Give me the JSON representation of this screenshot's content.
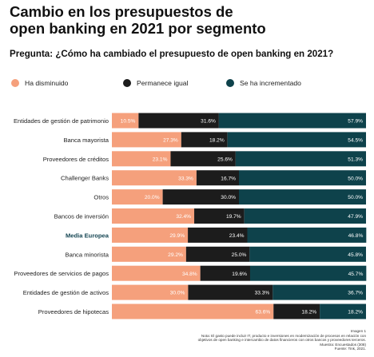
{
  "title_line1": "Cambio en los presupuestos de",
  "title_line2": "open banking en 2021 por segmento",
  "question": "Pregunta: ¿Cómo ha cambiado el presupuesto de open banking en 2021?",
  "colors": {
    "decreased": "#f5a07c",
    "same": "#1c1c1c",
    "increased": "#0e424b",
    "highlight_label": "#154653"
  },
  "chart_data": {
    "type": "bar",
    "orientation": "horizontal",
    "stacked": true,
    "normalized_percent": true,
    "categories": [
      "Entidades de gestión de patrimonio",
      "Banca mayorista",
      "Proveedores de créditos",
      "Challenger Banks",
      "Otros",
      "Bancos de inversión",
      "Media Europea",
      "Banca minorista",
      "Proveedores de servicios de pagos",
      "Entidades de gestión de activos",
      "Proveedores de hipotecas"
    ],
    "highlighted_category": "Media Europea",
    "series": [
      {
        "name": "Ha disminuido",
        "values": [
          10.5,
          27.3,
          23.1,
          33.3,
          20.0,
          32.4,
          29.9,
          29.2,
          34.8,
          30.0,
          63.6
        ]
      },
      {
        "name": "Permanece igual",
        "values": [
          31.6,
          18.2,
          25.6,
          16.7,
          30.0,
          19.7,
          23.4,
          25.0,
          19.6,
          33.3,
          18.2
        ]
      },
      {
        "name": "Se ha incrementado",
        "values": [
          57.9,
          54.5,
          51.3,
          50.0,
          50.0,
          47.9,
          46.8,
          45.8,
          45.7,
          36.7,
          18.2
        ]
      }
    ],
    "value_labels": [
      [
        "10.5%",
        "31.6%",
        "57.9%"
      ],
      [
        "27.3%",
        "18.2%",
        "54.5%"
      ],
      [
        "23.1%",
        "25.6%",
        "51.3%"
      ],
      [
        "33.3%",
        "16.7%",
        "50.0%"
      ],
      [
        "20.0%",
        "30.0%",
        "50.0%"
      ],
      [
        "32.4%",
        "19.7%",
        "47.9%"
      ],
      [
        "29.9%",
        "23.4%",
        "46.8%"
      ],
      [
        "29.2%",
        "25.0%",
        "45.8%"
      ],
      [
        "34.8%",
        "19.6%",
        "45.7%"
      ],
      [
        "30.0%",
        "33.3%",
        "36.7%"
      ],
      [
        "63.6%",
        "18.2%",
        "18.2%"
      ]
    ],
    "xlim": [
      0,
      100
    ],
    "grid": false,
    "legend_position": "top"
  },
  "footer_lines": [
    "Imagen 1",
    "Nota: El gasto puede incluir IT, producto e inversiones en modernización de procesos en relación con",
    "objetivos de open banking e intercambio de datos financieros con otros bancos y proveedores terceros.",
    "Muestra: Encuestados (308)",
    "Fuente: Tink, 2021."
  ]
}
